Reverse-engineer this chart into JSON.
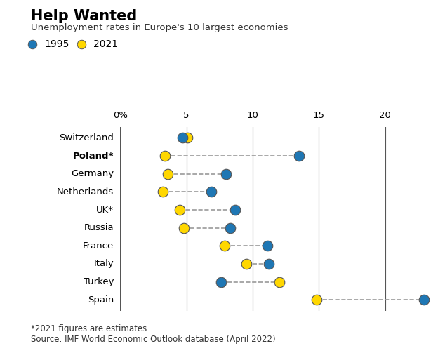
{
  "title": "Help Wanted",
  "subtitle": "Unemployment rates in Europe's 10 largest economies",
  "footnote": "*2021 figures are estimates.\nSource: IMF World Economic Outlook database (April 2022)",
  "legend_1995": "1995",
  "legend_2021": "2021",
  "color_1995": "#1F77B4",
  "color_2021": "#FFD700",
  "countries": [
    "Switzerland",
    "Poland*",
    "Germany",
    "Netherlands",
    "UK*",
    "Russia",
    "France",
    "Italy",
    "Turkey",
    "Spain"
  ],
  "bold_countries": [
    "Poland*"
  ],
  "val_1995": [
    4.7,
    13.5,
    8.0,
    6.9,
    8.7,
    8.3,
    11.1,
    11.2,
    7.6,
    22.9
  ],
  "val_2021": [
    5.1,
    3.4,
    3.6,
    3.2,
    4.5,
    4.8,
    7.9,
    9.5,
    12.0,
    14.8
  ],
  "xlim": [
    0,
    23.5
  ],
  "xticks": [
    0,
    5,
    10,
    15,
    20
  ],
  "xticklabels": [
    "0%",
    "5",
    "10",
    "15",
    "20"
  ],
  "background_color": "#FFFFFF",
  "vline_color": "#555555",
  "dot_size": 110
}
